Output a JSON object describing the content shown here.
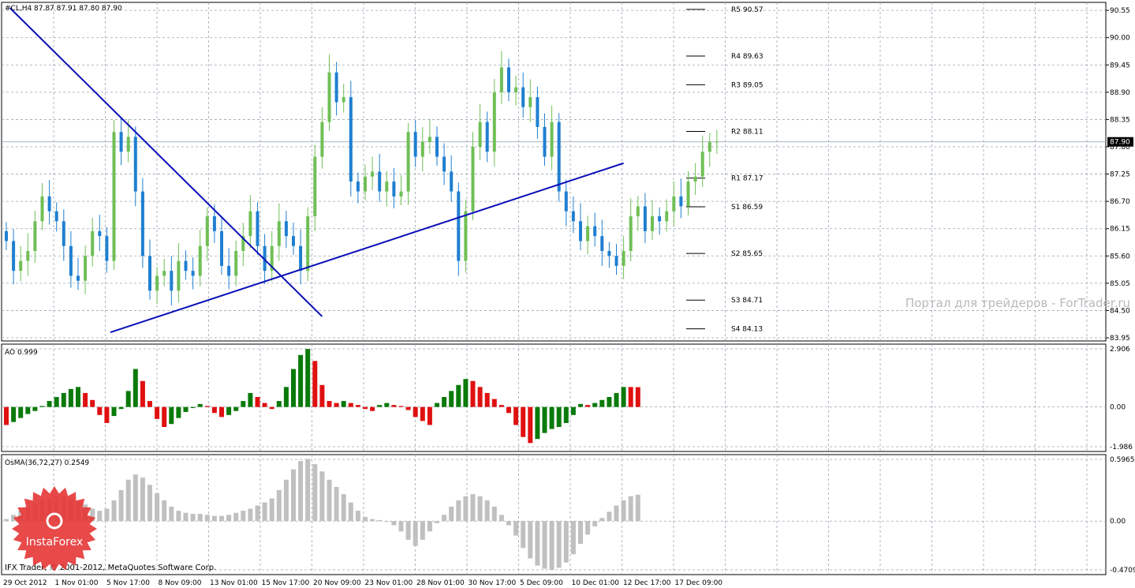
{
  "window": {
    "symbol_line": "#CL,H4  87.87 87.91 87.80 87.90",
    "credit": "IFX Trader, © 2001-2012, MetaQuotes Software Corp.",
    "watermark": "Портал для трейдеров - ForTrader.ru",
    "brand": "InstaForex",
    "last_price_badge": "87.90"
  },
  "colors": {
    "bull_candle": "#6fbf55",
    "bear_candle": "#1f7fd0",
    "trendline": "#0b10b8",
    "ao_up": "#0a7a0a",
    "ao_down": "#e01010",
    "osma": "#c0c0c0",
    "grid": "#9aa6b2",
    "badge": "#e53535"
  },
  "chart_data": [
    {
      "type": "line",
      "title": "#CL,H4  87.87 87.91 87.80 87.90",
      "ylim": [
        83.95,
        90.6
      ],
      "y_ticks": [
        "90.55",
        "90.00",
        "89.45",
        "88.90",
        "88.35",
        "87.80",
        "87.25",
        "86.70",
        "86.15",
        "85.60",
        "85.05",
        "84.50",
        "83.95"
      ],
      "x_tick_labels": [
        "29 Oct 2012",
        "1 Nov 01:00",
        "5 Nov 17:00",
        "8 Nov 09:00",
        "13 Nov 01:00",
        "15 Nov 17:00",
        "20 Nov 09:00",
        "23 Nov 01:00",
        "28 Nov 01:00",
        "30 Nov 17:00",
        "5 Dec 09:00",
        "10 Dec 01:00",
        "12 Dec 17:00",
        "17 Dec 09:00"
      ],
      "close": [
        85.9,
        85.3,
        85.5,
        85.7,
        86.3,
        86.8,
        86.5,
        86.3,
        85.8,
        85.2,
        85.1,
        85.6,
        86.1,
        86.0,
        85.5,
        88.1,
        87.7,
        88.0,
        86.9,
        85.6,
        84.9,
        85.2,
        85.3,
        84.9,
        85.5,
        85.3,
        85.2,
        85.8,
        86.4,
        86.1,
        85.4,
        85.2,
        85.7,
        86.0,
        86.5,
        85.8,
        85.3,
        85.8,
        86.3,
        86.0,
        85.8,
        85.3,
        86.4,
        87.6,
        88.3,
        89.3,
        88.7,
        88.8,
        87.1,
        86.9,
        87.2,
        87.3,
        86.9,
        87.1,
        86.8,
        86.9,
        88.1,
        87.6,
        87.9,
        88.0,
        87.6,
        87.3,
        86.9,
        85.5,
        86.5,
        87.8,
        88.3,
        87.7,
        88.9,
        89.4,
        88.9,
        89.0,
        88.6,
        88.8,
        88.2,
        87.6,
        88.3,
        86.9,
        86.5,
        86.3,
        85.9,
        86.2,
        86.0,
        85.7,
        85.6,
        85.4,
        85.7,
        86.4,
        86.6,
        86.1,
        86.4,
        86.3,
        86.5,
        86.8,
        86.6,
        87.1,
        87.2,
        87.7,
        87.9,
        87.9
      ],
      "pivot_levels": [
        {
          "label": "R5 90.57",
          "value": 90.57
        },
        {
          "label": "R4 89.63",
          "value": 89.63
        },
        {
          "label": "R3 89.05",
          "value": 89.05
        },
        {
          "label": "R2 88.11",
          "value": 88.11
        },
        {
          "label": "R1 87.17",
          "value": 87.17
        },
        {
          "label": "S1 86.59",
          "value": 86.59
        },
        {
          "label": "S2 85.65",
          "value": 85.65
        },
        {
          "label": "S3 84.71",
          "value": 84.71
        },
        {
          "label": "S4 84.13",
          "value": 84.13
        }
      ],
      "trendlines": [
        {
          "from": [
            0.5,
            90.6
          ],
          "to": [
            44,
            84.38
          ]
        },
        {
          "from": [
            14.5,
            84.06
          ],
          "to": [
            86,
            87.47
          ]
        }
      ],
      "current_price": 87.9
    },
    {
      "type": "bar",
      "title": "AO 0.999",
      "ylim": [
        -1.986,
        2.906
      ],
      "y_ticks": [
        "2.906",
        "0.00",
        "-1.986"
      ],
      "values": [
        -0.9,
        -0.75,
        -0.55,
        -0.35,
        -0.2,
        0.05,
        0.3,
        0.5,
        0.7,
        0.9,
        1.0,
        0.7,
        0.35,
        -0.4,
        -0.8,
        -0.45,
        -0.1,
        0.8,
        1.9,
        1.3,
        0.3,
        -0.6,
        -1.0,
        -0.85,
        -0.55,
        -0.25,
        -0.05,
        0.15,
        0.05,
        -0.3,
        -0.5,
        -0.4,
        -0.2,
        0.3,
        0.7,
        0.5,
        0.2,
        -0.1,
        0.3,
        1.0,
        1.9,
        2.6,
        2.9,
        2.3,
        1.1,
        0.3,
        0.2,
        0.3,
        0.2,
        0.1,
        -0.1,
        -0.2,
        0.1,
        0.2,
        0.1,
        0.05,
        -0.15,
        -0.5,
        -0.7,
        -0.9,
        0.2,
        0.5,
        0.8,
        1.1,
        1.4,
        1.3,
        1.0,
        0.7,
        0.4,
        0.1,
        -0.3,
        -0.9,
        -1.5,
        -1.8,
        -1.6,
        -1.3,
        -1.1,
        -1.0,
        -0.8,
        -0.4,
        0.15,
        0.1,
        0.2,
        0.35,
        0.5,
        0.7,
        1.0,
        1.0,
        0.99
      ],
      "colors": [
        "ao_down",
        "ao_up",
        "ao_up",
        "ao_up",
        "ao_up",
        "ao_up",
        "ao_up",
        "ao_up",
        "ao_up",
        "ao_up",
        "ao_up",
        "ao_down",
        "ao_down",
        "ao_down",
        "ao_down",
        "ao_up",
        "ao_up",
        "ao_up",
        "ao_up",
        "ao_down",
        "ao_down",
        "ao_down",
        "ao_down",
        "ao_up",
        "ao_up",
        "ao_up",
        "ao_up",
        "ao_up",
        "ao_down",
        "ao_down",
        "ao_down",
        "ao_up",
        "ao_up",
        "ao_up",
        "ao_up",
        "ao_down",
        "ao_down",
        "ao_down",
        "ao_up",
        "ao_up",
        "ao_up",
        "ao_up",
        "ao_up",
        "ao_down",
        "ao_down",
        "ao_down",
        "ao_down",
        "ao_up",
        "ao_down",
        "ao_down",
        "ao_down",
        "ao_down",
        "ao_up",
        "ao_up",
        "ao_down",
        "ao_down",
        "ao_down",
        "ao_down",
        "ao_down",
        "ao_down",
        "ao_up",
        "ao_up",
        "ao_up",
        "ao_up",
        "ao_up",
        "ao_down",
        "ao_down",
        "ao_down",
        "ao_down",
        "ao_down",
        "ao_down",
        "ao_down",
        "ao_down",
        "ao_down",
        "ao_up",
        "ao_up",
        "ao_up",
        "ao_up",
        "ao_up",
        "ao_up",
        "ao_up",
        "ao_down",
        "ao_up",
        "ao_up",
        "ao_up",
        "ao_up",
        "ao_up",
        "ao_down",
        "ao_down"
      ]
    },
    {
      "type": "bar",
      "title": "OsMA(36,72,27) 0.2549",
      "ylim": [
        -0.4709,
        0.5965
      ],
      "y_ticks": [
        "0.5965",
        "0.00",
        "-0.4709"
      ],
      "values": [
        0.02,
        0.06,
        0.1,
        0.14,
        0.17,
        0.2,
        0.22,
        0.24,
        0.24,
        0.22,
        0.19,
        0.16,
        0.12,
        0.1,
        0.12,
        0.2,
        0.3,
        0.4,
        0.45,
        0.42,
        0.35,
        0.27,
        0.2,
        0.14,
        0.1,
        0.08,
        0.07,
        0.07,
        0.06,
        0.05,
        0.05,
        0.06,
        0.08,
        0.1,
        0.12,
        0.15,
        0.18,
        0.22,
        0.3,
        0.4,
        0.5,
        0.58,
        0.6,
        0.55,
        0.48,
        0.4,
        0.33,
        0.26,
        0.18,
        0.1,
        0.04,
        0.02,
        0.01,
        0.0,
        -0.04,
        -0.1,
        -0.18,
        -0.24,
        -0.18,
        -0.1,
        -0.02,
        0.06,
        0.14,
        0.2,
        0.24,
        0.26,
        0.24,
        0.2,
        0.14,
        0.06,
        -0.04,
        -0.14,
        -0.26,
        -0.36,
        -0.43,
        -0.46,
        -0.47,
        -0.45,
        -0.4,
        -0.32,
        -0.22,
        -0.13,
        -0.05,
        0.03,
        0.09,
        0.15,
        0.2,
        0.24,
        0.255
      ]
    }
  ]
}
